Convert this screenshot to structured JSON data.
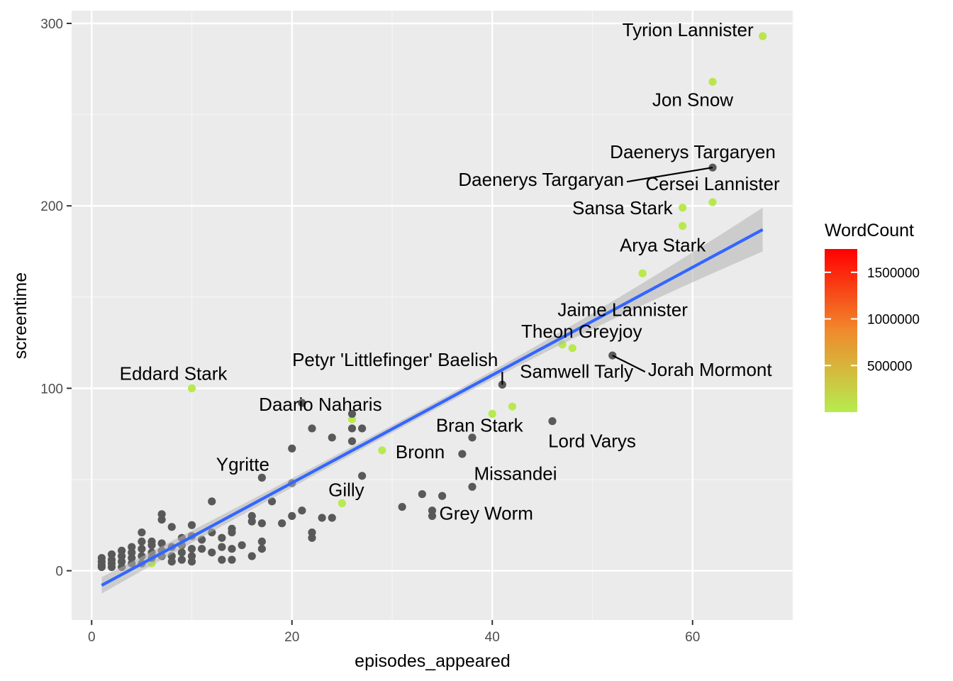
{
  "chart_data": {
    "type": "scatter",
    "title": "",
    "xlabel": "episodes_appeared",
    "ylabel": "screentime",
    "xlim": [
      -2,
      70
    ],
    "ylim": [
      -27,
      307
    ],
    "x_ticks": [
      0,
      20,
      40,
      60
    ],
    "y_ticks": [
      0,
      100,
      200,
      300
    ],
    "grid": true,
    "legend": {
      "title": "WordCount",
      "position": "right",
      "type": "colorbar",
      "ticks": [
        500000,
        1000000,
        1500000
      ],
      "tick_labels": [
        "500000",
        "1000000",
        "1500000"
      ],
      "range": [
        1,
        1750000
      ],
      "colors": [
        "#b6ec4f",
        "#ff0000"
      ]
    },
    "colors": {
      "panel": "#ebebeb",
      "grid_major": "#ffffff",
      "grid_minor": "#f5f5f5",
      "na_point": "#595959",
      "fit_line": "#3366ff",
      "ribbon": "#b3b3b3"
    },
    "fit": {
      "type": "linear",
      "x": [
        1,
        67
      ],
      "y": [
        -8,
        187
      ],
      "ci_halfwidth_at_ends": [
        4.5,
        12
      ],
      "ci_halfwidth_at_center": 2
    },
    "labeled_points": [
      {
        "name": "Tyrion Lannister",
        "x": 67,
        "y": 293,
        "word_count": 60000
      },
      {
        "name": "Jon Snow",
        "x": 62,
        "y": 268,
        "word_count": 50000
      },
      {
        "name": "Daenerys Targaryen",
        "x": 62,
        "y": 221,
        "word_count": null
      },
      {
        "name": "Daenerys Targaryan",
        "x": 62,
        "y": 221,
        "word_count": null
      },
      {
        "name": "Cersei Lannister",
        "x": 62,
        "y": 202,
        "word_count": 40000
      },
      {
        "name": "Sansa Stark",
        "x": 59,
        "y": 199,
        "word_count": 40000
      },
      {
        "name": "Arya Stark",
        "x": 59,
        "y": 189,
        "word_count": 35000
      },
      {
        "name": "Jaime Lannister",
        "x": 55,
        "y": 163,
        "word_count": 30000
      },
      {
        "name": "Theon Greyjoy",
        "x": 48,
        "y": 122,
        "word_count": 25000
      },
      {
        "name": "Samwell Tarly",
        "x": 47,
        "y": 124,
        "word_count": 25000
      },
      {
        "name": "Jorah Mormont",
        "x": 52,
        "y": 118,
        "word_count": null
      },
      {
        "name": "Petyr 'Littlefinger' Baelish",
        "x": 41,
        "y": 102,
        "word_count": null
      },
      {
        "name": "Eddard Stark",
        "x": 10,
        "y": 100,
        "word_count": 20000
      },
      {
        "name": "Daario Naharis",
        "x": 21,
        "y": 92,
        "word_count": null
      },
      {
        "name": "Bran Stark",
        "x": 40,
        "y": 86,
        "word_count": 20000
      },
      {
        "name": "Lord Varys",
        "x": 46,
        "y": 82,
        "word_count": null
      },
      {
        "name": "Bronn",
        "x": 29,
        "y": 66,
        "word_count": 15000
      },
      {
        "name": "Missandei",
        "x": 38,
        "y": 46,
        "word_count": null
      },
      {
        "name": "Ygritte",
        "x": 17,
        "y": 51,
        "word_count": null
      },
      {
        "name": "Gilly",
        "x": 25,
        "y": 37,
        "word_count": 10000
      },
      {
        "name": "Grey Worm",
        "x": 34,
        "y": 30,
        "word_count": null
      }
    ],
    "other_points": [
      {
        "x": 42,
        "y": 90,
        "word_count": 15000
      },
      {
        "x": 26,
        "y": 83,
        "word_count": 10000
      },
      {
        "x": 6,
        "y": 4,
        "word_count": 5000
      },
      {
        "x": 26,
        "y": 86,
        "word_count": null
      },
      {
        "x": 26,
        "y": 78,
        "word_count": null
      },
      {
        "x": 27,
        "y": 78,
        "word_count": null
      },
      {
        "x": 26,
        "y": 71,
        "word_count": null
      },
      {
        "x": 22,
        "y": 78,
        "word_count": null
      },
      {
        "x": 24,
        "y": 73,
        "word_count": null
      },
      {
        "x": 38,
        "y": 73,
        "word_count": null
      },
      {
        "x": 37,
        "y": 64,
        "word_count": null
      },
      {
        "x": 20,
        "y": 67,
        "word_count": null
      },
      {
        "x": 27,
        "y": 52,
        "word_count": null
      },
      {
        "x": 20,
        "y": 48,
        "word_count": null
      },
      {
        "x": 33,
        "y": 42,
        "word_count": null
      },
      {
        "x": 35,
        "y": 41,
        "word_count": null
      },
      {
        "x": 31,
        "y": 35,
        "word_count": null
      },
      {
        "x": 34,
        "y": 33,
        "word_count": null
      },
      {
        "x": 12,
        "y": 38,
        "word_count": null
      },
      {
        "x": 18,
        "y": 38,
        "word_count": null
      },
      {
        "x": 21,
        "y": 33,
        "word_count": null
      },
      {
        "x": 20,
        "y": 30,
        "word_count": null
      },
      {
        "x": 23,
        "y": 29,
        "word_count": null
      },
      {
        "x": 24,
        "y": 29,
        "word_count": null
      },
      {
        "x": 16,
        "y": 30,
        "word_count": null
      },
      {
        "x": 16,
        "y": 27,
        "word_count": null
      },
      {
        "x": 17,
        "y": 26,
        "word_count": null
      },
      {
        "x": 19,
        "y": 26,
        "word_count": null
      },
      {
        "x": 22,
        "y": 21,
        "word_count": null
      },
      {
        "x": 22,
        "y": 18,
        "word_count": null
      },
      {
        "x": 7,
        "y": 31,
        "word_count": null
      },
      {
        "x": 7,
        "y": 28,
        "word_count": null
      },
      {
        "x": 8,
        "y": 24,
        "word_count": null
      },
      {
        "x": 10,
        "y": 25,
        "word_count": null
      },
      {
        "x": 14,
        "y": 23,
        "word_count": null
      },
      {
        "x": 14,
        "y": 21,
        "word_count": null
      },
      {
        "x": 12,
        "y": 21,
        "word_count": null
      },
      {
        "x": 13,
        "y": 18,
        "word_count": null
      },
      {
        "x": 5,
        "y": 21,
        "word_count": null
      },
      {
        "x": 5,
        "y": 16,
        "word_count": null
      },
      {
        "x": 6,
        "y": 16,
        "word_count": null
      },
      {
        "x": 9,
        "y": 18,
        "word_count": null
      },
      {
        "x": 10,
        "y": 19,
        "word_count": null
      },
      {
        "x": 11,
        "y": 17,
        "word_count": null
      },
      {
        "x": 15,
        "y": 14,
        "word_count": null
      },
      {
        "x": 17,
        "y": 16,
        "word_count": null
      },
      {
        "x": 17,
        "y": 12,
        "word_count": null
      },
      {
        "x": 16,
        "y": 8,
        "word_count": null
      },
      {
        "x": 13,
        "y": 13,
        "word_count": null
      },
      {
        "x": 14,
        "y": 12,
        "word_count": null
      },
      {
        "x": 13,
        "y": 6,
        "word_count": null
      },
      {
        "x": 14,
        "y": 6,
        "word_count": null
      },
      {
        "x": 11,
        "y": 12,
        "word_count": null
      },
      {
        "x": 12,
        "y": 10,
        "word_count": null
      },
      {
        "x": 10,
        "y": 12,
        "word_count": null
      },
      {
        "x": 10,
        "y": 8,
        "word_count": null
      },
      {
        "x": 10,
        "y": 5,
        "word_count": null
      },
      {
        "x": 9,
        "y": 14,
        "word_count": null
      },
      {
        "x": 9,
        "y": 10,
        "word_count": null
      },
      {
        "x": 9,
        "y": 6,
        "word_count": null
      },
      {
        "x": 8,
        "y": 13,
        "word_count": null
      },
      {
        "x": 8,
        "y": 8,
        "word_count": null
      },
      {
        "x": 8,
        "y": 5,
        "word_count": null
      },
      {
        "x": 7,
        "y": 15,
        "word_count": null
      },
      {
        "x": 7,
        "y": 11,
        "word_count": null
      },
      {
        "x": 7,
        "y": 8,
        "word_count": null
      },
      {
        "x": 6,
        "y": 14,
        "word_count": null
      },
      {
        "x": 6,
        "y": 10,
        "word_count": null
      },
      {
        "x": 6,
        "y": 7,
        "word_count": null
      },
      {
        "x": 5,
        "y": 12,
        "word_count": null
      },
      {
        "x": 5,
        "y": 8,
        "word_count": null
      },
      {
        "x": 5,
        "y": 4,
        "word_count": null
      },
      {
        "x": 4,
        "y": 13,
        "word_count": null
      },
      {
        "x": 4,
        "y": 10,
        "word_count": null
      },
      {
        "x": 4,
        "y": 7,
        "word_count": null
      },
      {
        "x": 4,
        "y": 4,
        "word_count": null
      },
      {
        "x": 3,
        "y": 11,
        "word_count": null
      },
      {
        "x": 3,
        "y": 8,
        "word_count": null
      },
      {
        "x": 3,
        "y": 5,
        "word_count": null
      },
      {
        "x": 3,
        "y": 2,
        "word_count": null
      },
      {
        "x": 2,
        "y": 9,
        "word_count": null
      },
      {
        "x": 2,
        "y": 6,
        "word_count": null
      },
      {
        "x": 2,
        "y": 4,
        "word_count": null
      },
      {
        "x": 2,
        "y": 2,
        "word_count": null
      },
      {
        "x": 1,
        "y": 7,
        "word_count": null
      },
      {
        "x": 1,
        "y": 5,
        "word_count": null
      },
      {
        "x": 1,
        "y": 3,
        "word_count": null
      },
      {
        "x": 1,
        "y": 2,
        "word_count": null
      }
    ]
  }
}
